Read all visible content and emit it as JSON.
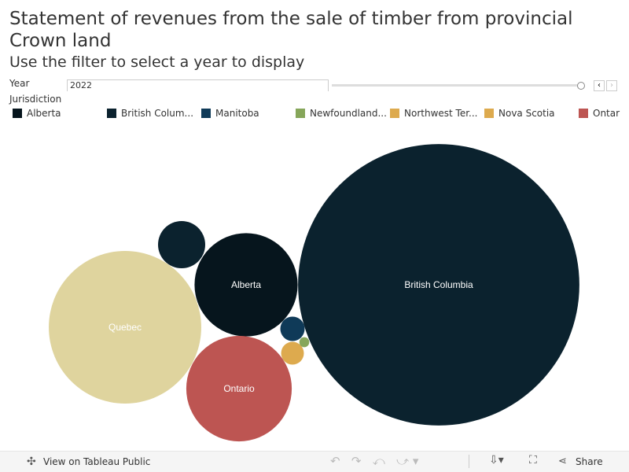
{
  "chart_data": {
    "type": "bubble",
    "title": "Statement of revenues from the sale of timber from provincial Crown land",
    "subtitle": "Use the filter to select a year to display",
    "categories": [
      "British Columbia",
      "Quebec",
      "Alberta",
      "Ontario",
      null,
      null,
      null,
      null
    ],
    "values": [
      32000,
      9400,
      4300,
      4500,
      900,
      240,
      210,
      40
    ],
    "colors": [
      "#0b222e",
      "#dfd49e",
      "#06151d",
      "#bd5552",
      "#0b222e",
      "#0f3a58",
      "#ddaa4e",
      "#86a65a"
    ],
    "legend_title": "Jurisdiction",
    "legend": [
      {
        "label": "Alberta",
        "color": "#06151d"
      },
      {
        "label": "British Colum...",
        "color": "#0b222e"
      },
      {
        "label": "Manitoba",
        "color": "#0f3a58"
      },
      {
        "label": "Newfoundland...",
        "color": "#86a65a"
      },
      {
        "label": "Northwest Ter...",
        "color": "#ddaa4e"
      },
      {
        "label": "Nova Scotia",
        "color": "#ddaa4e"
      },
      {
        "label": "Ontar",
        "color": "#bd5552"
      }
    ]
  },
  "filter": {
    "label": "Year",
    "value": "2022"
  },
  "toolbar": {
    "view": "View on Tableau Public",
    "share": "Share"
  }
}
